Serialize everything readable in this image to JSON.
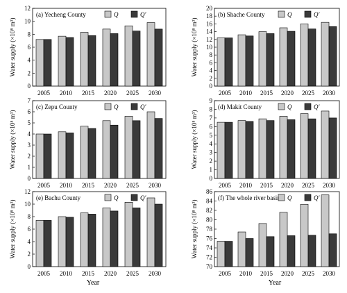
{
  "figure": {
    "bottom_xlabels": [
      "Year",
      "Year"
    ]
  },
  "series_styles": [
    {
      "name": "Q",
      "color": "#c8c8c8"
    },
    {
      "name": "Q′",
      "color": "#3a3a3a"
    }
  ],
  "chart_data": [
    {
      "type": "bar",
      "title": "(a) Yecheng County",
      "categories": [
        "2005",
        "2010",
        "2015",
        "2020",
        "2025",
        "2030"
      ],
      "ylabel": "Water supply (×10⁸ m³)",
      "ylim": [
        0,
        12
      ],
      "yticks": [
        0,
        2,
        4,
        6,
        8,
        10,
        12
      ],
      "grid": false,
      "legend": "top-right",
      "series": [
        {
          "name": "Q",
          "values": [
            7.2,
            7.7,
            8.3,
            8.8,
            9.3,
            9.8
          ]
        },
        {
          "name": "Q′",
          "values": [
            7.2,
            7.5,
            7.8,
            8.1,
            8.5,
            8.8
          ]
        }
      ]
    },
    {
      "type": "bar",
      "title": "(b) Shache County",
      "categories": [
        "2005",
        "2010",
        "2015",
        "2020",
        "2025",
        "2030"
      ],
      "ylabel": "Water supply (×10⁸ m³)",
      "ylim": [
        0,
        20
      ],
      "yticks": [
        0,
        2,
        4,
        6,
        8,
        10,
        12,
        14,
        16,
        18,
        20
      ],
      "grid": false,
      "legend": "top-right",
      "series": [
        {
          "name": "Q",
          "values": [
            12.4,
            13.2,
            14.0,
            15.0,
            16.0,
            16.4
          ]
        },
        {
          "name": "Q′",
          "values": [
            12.4,
            12.9,
            13.5,
            14.1,
            14.7,
            15.3
          ]
        }
      ]
    },
    {
      "type": "bar",
      "title": "(c) Zepu County",
      "categories": [
        "2005",
        "2010",
        "2015",
        "2020",
        "2025",
        "2030"
      ],
      "ylabel": "Water supply (×10⁸ m³)",
      "ylim": [
        0,
        7
      ],
      "yticks": [
        0,
        1,
        2,
        3,
        4,
        5,
        6,
        7
      ],
      "grid": false,
      "legend": "top-right",
      "series": [
        {
          "name": "Q",
          "values": [
            4.0,
            4.2,
            4.7,
            5.2,
            5.6,
            6.0
          ]
        },
        {
          "name": "Q′",
          "values": [
            4.0,
            4.1,
            4.5,
            4.8,
            5.2,
            5.4
          ]
        }
      ]
    },
    {
      "type": "bar",
      "title": "(d) Makit County",
      "categories": [
        "2005",
        "2010",
        "2015",
        "2020",
        "2025",
        "2030"
      ],
      "ylabel": "Water supply (×10⁸ m³)",
      "ylim": [
        0,
        9
      ],
      "yticks": [
        0,
        1,
        2,
        3,
        4,
        5,
        6,
        7,
        8,
        9
      ],
      "grid": false,
      "legend": "top-right",
      "series": [
        {
          "name": "Q",
          "values": [
            6.5,
            6.7,
            6.9,
            7.2,
            7.5,
            7.8
          ]
        },
        {
          "name": "Q′",
          "values": [
            6.5,
            6.6,
            6.7,
            6.8,
            6.9,
            7.0
          ]
        }
      ]
    },
    {
      "type": "bar",
      "title": "(e) Bachu County",
      "categories": [
        "2005",
        "2010",
        "2015",
        "2020",
        "2025",
        "2030"
      ],
      "ylabel": "Water supply (×10⁸ m³)",
      "ylim": [
        0,
        12
      ],
      "yticks": [
        0,
        2,
        4,
        6,
        8,
        10,
        12
      ],
      "grid": false,
      "legend": "top-right",
      "series": [
        {
          "name": "Q",
          "values": [
            7.4,
            8.0,
            8.6,
            9.4,
            10.3,
            11.0
          ]
        },
        {
          "name": "Q′",
          "values": [
            7.4,
            7.9,
            8.4,
            8.9,
            9.4,
            10.0
          ]
        }
      ]
    },
    {
      "type": "bar",
      "title": "(f) The whole river basin",
      "categories": [
        "2005",
        "2010",
        "2015",
        "2020",
        "2025",
        "2030"
      ],
      "ylabel": "Water supply (×10⁸ m³)",
      "ylim": [
        70,
        86
      ],
      "yticks": [
        70,
        72,
        74,
        76,
        78,
        80,
        82,
        84,
        86
      ],
      "grid": false,
      "legend": "top-right",
      "series": [
        {
          "name": "Q",
          "values": [
            75.4,
            77.4,
            79.2,
            81.6,
            83.3,
            85.3
          ]
        },
        {
          "name": "Q′",
          "values": [
            75.4,
            76.0,
            76.4,
            76.6,
            76.7,
            77.0
          ]
        }
      ]
    }
  ]
}
